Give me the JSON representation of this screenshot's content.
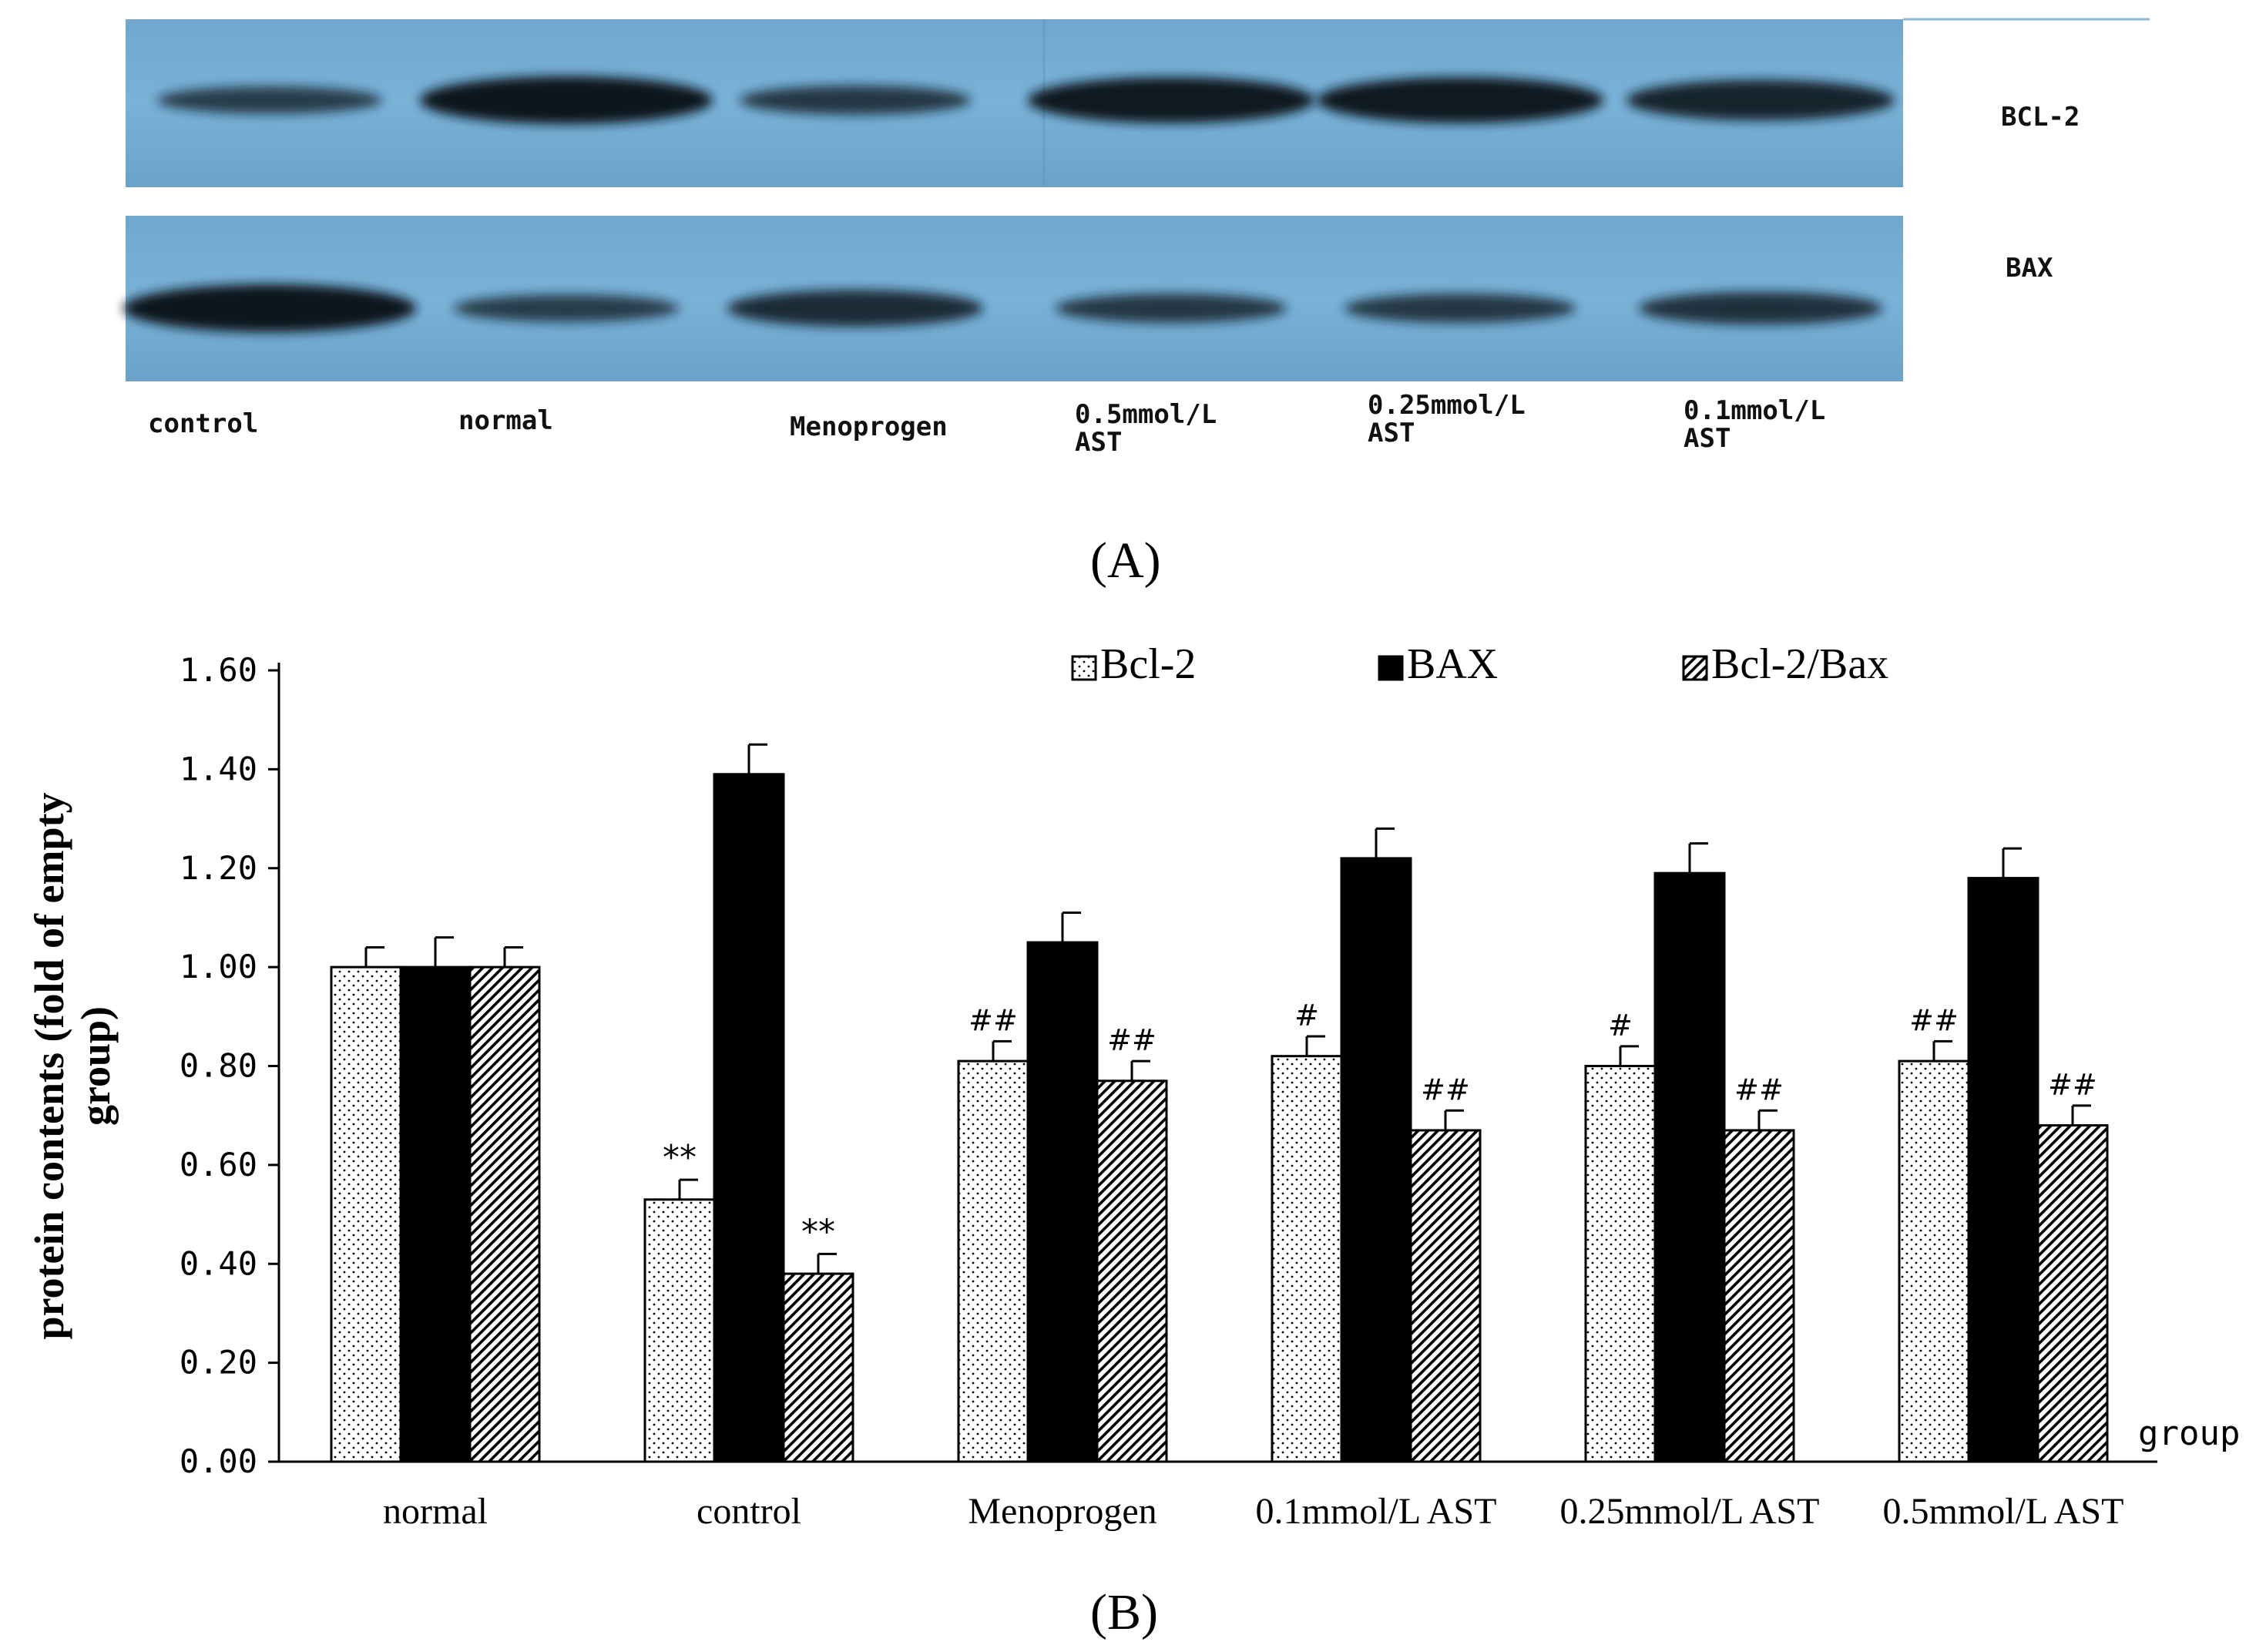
{
  "panel_a": {
    "label": "(A)",
    "lanes": [
      "control",
      "normal",
      "Menoprogen",
      "0.5mmol/L\nAST",
      "0.25mmol/L\nAST",
      "0.1mmol/L\nAST"
    ],
    "proteins": [
      "BCL-2",
      "BAX"
    ],
    "band_intensity": {
      "BCL-2": [
        0.45,
        1.0,
        0.5,
        0.95,
        0.95,
        0.8
      ],
      "BAX": [
        1.0,
        0.45,
        0.7,
        0.5,
        0.5,
        0.6
      ]
    }
  },
  "panel_b": {
    "label": "(B)"
  },
  "chart_data": {
    "type": "bar",
    "title": "",
    "ylabel": "protein contents (fold of empty group)",
    "xlabel": "group",
    "ylim": [
      0,
      1.6
    ],
    "yticks": [
      "0.00",
      "0.20",
      "0.40",
      "0.60",
      "0.80",
      "1.00",
      "1.20",
      "1.40",
      "1.60"
    ],
    "legend_position": "top",
    "categories": [
      "normal",
      "control",
      "Menoprogen",
      "0.1mmol/L AST",
      "0.25mmol/L AST",
      "0.5mmol/L AST"
    ],
    "series": [
      {
        "name": "Bcl-2",
        "pattern": "dots",
        "values": [
          1.0,
          0.53,
          0.81,
          0.82,
          0.8,
          0.81
        ],
        "errors": [
          0.04,
          0.04,
          0.04,
          0.04,
          0.04,
          0.04
        ],
        "annotations": [
          "",
          "**",
          "##",
          "#",
          "#",
          "##"
        ]
      },
      {
        "name": "BAX",
        "pattern": "solid",
        "values": [
          1.0,
          1.39,
          1.05,
          1.22,
          1.19,
          1.18
        ],
        "errors": [
          0.06,
          0.06,
          0.06,
          0.06,
          0.06,
          0.06
        ],
        "annotations": [
          "",
          "",
          "",
          "",
          "",
          ""
        ]
      },
      {
        "name": "Bcl-2/Bax",
        "pattern": "hatch",
        "values": [
          1.0,
          0.38,
          0.77,
          0.67,
          0.67,
          0.68
        ],
        "errors": [
          0.04,
          0.04,
          0.04,
          0.04,
          0.04,
          0.04
        ],
        "annotations": [
          "",
          "**",
          "##",
          "##",
          "##",
          "##"
        ]
      }
    ]
  }
}
